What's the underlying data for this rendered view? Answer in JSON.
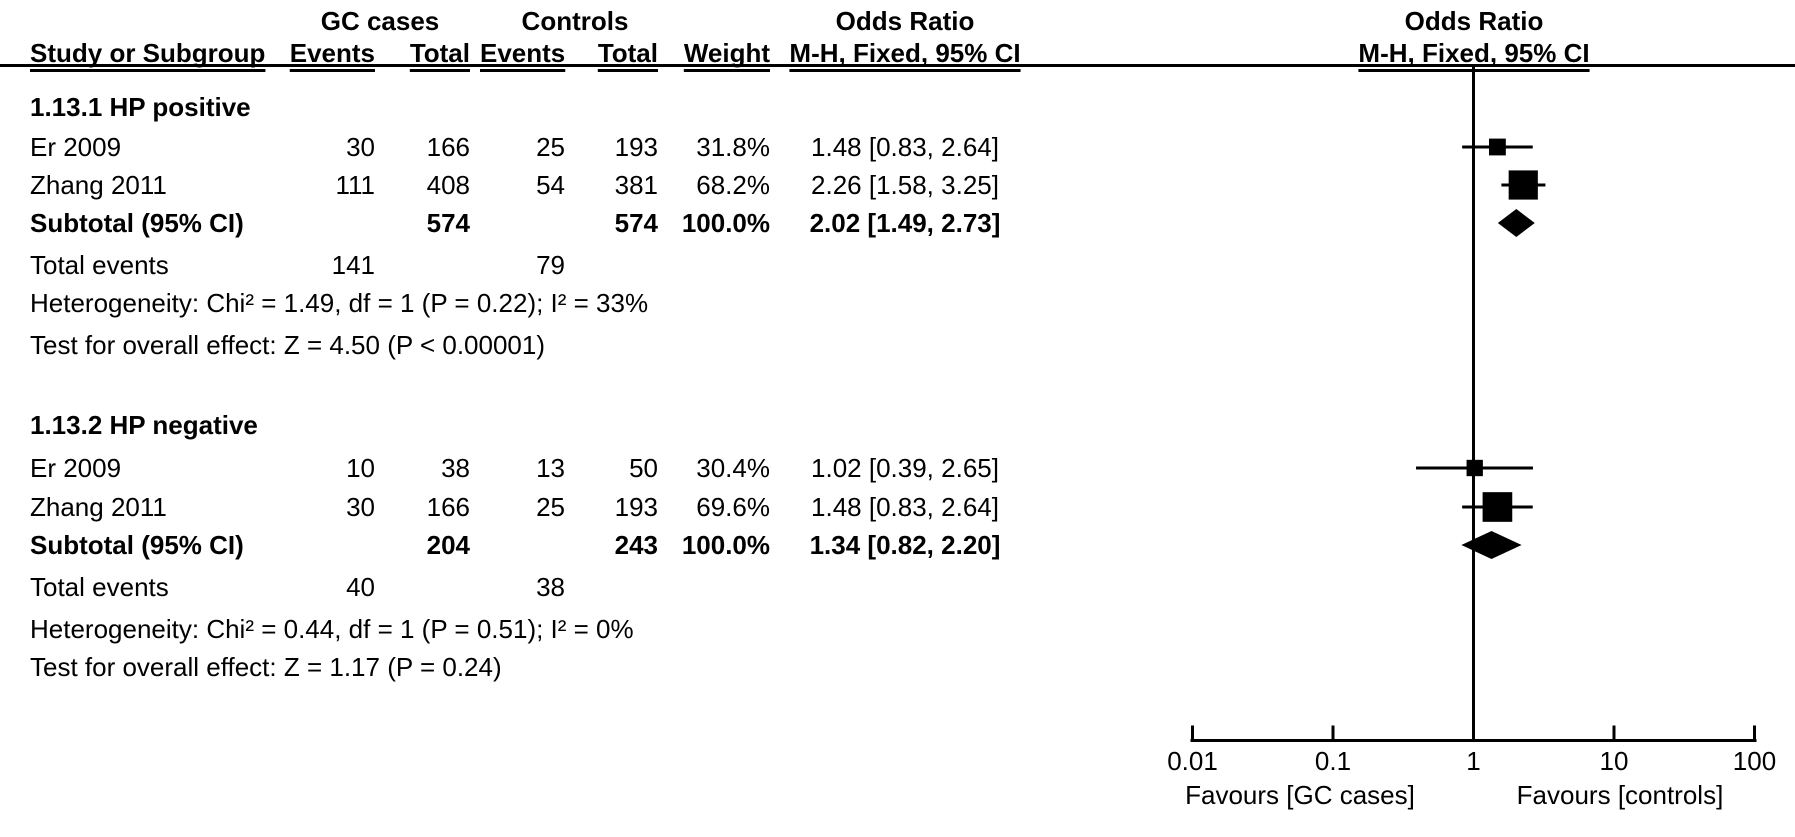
{
  "header": {
    "study_col": "Study or Subgroup",
    "group1": "GC cases",
    "group2": "Controls",
    "events": "Events",
    "total": "Total",
    "weight": "Weight",
    "or_title": "Odds Ratio",
    "method": "M-H, Fixed, 95% CI"
  },
  "sections": [
    {
      "title": "1.13.1 HP positive",
      "studies": [
        {
          "name": "Er 2009",
          "e1": "30",
          "t1": "166",
          "e2": "25",
          "t2": "193",
          "weight": "31.8%",
          "ci": "1.48 [0.83, 2.64]"
        },
        {
          "name": "Zhang 2011",
          "e1": "111",
          "t1": "408",
          "e2": "54",
          "t2": "381",
          "weight": "68.2%",
          "ci": "2.26 [1.58, 3.25]"
        }
      ],
      "subtotal": {
        "label": "Subtotal (95% CI)",
        "t1": "574",
        "t2": "574",
        "weight": "100.0%",
        "ci": "2.02 [1.49, 2.73]"
      },
      "total_events": {
        "label": "Total events",
        "e1": "141",
        "e2": "79"
      },
      "heterogeneity": "Heterogeneity: Chi² = 1.49, df = 1 (P = 0.22); I² = 33%",
      "overall_effect": "Test for overall effect: Z = 4.50 (P < 0.00001)"
    },
    {
      "title": "1.13.2 HP negative",
      "studies": [
        {
          "name": "Er 2009",
          "e1": "10",
          "t1": "38",
          "e2": "13",
          "t2": "50",
          "weight": "30.4%",
          "ci": "1.02 [0.39, 2.65]"
        },
        {
          "name": "Zhang 2011",
          "e1": "30",
          "t1": "166",
          "e2": "25",
          "t2": "193",
          "weight": "69.6%",
          "ci": "1.48 [0.83, 2.64]"
        }
      ],
      "subtotal": {
        "label": "Subtotal (95% CI)",
        "t1": "204",
        "t2": "243",
        "weight": "100.0%",
        "ci": "1.34 [0.82, 2.20]"
      },
      "total_events": {
        "label": "Total events",
        "e1": "40",
        "e2": "38"
      },
      "heterogeneity": "Heterogeneity: Chi² = 0.44, df = 1 (P = 0.51); I² = 0%",
      "overall_effect": "Test for overall effect: Z = 1.17 (P = 0.24)"
    }
  ],
  "axis": {
    "tick_labels": [
      "0.01",
      "0.1",
      "1",
      "10",
      "100"
    ],
    "tick_values": [
      0.01,
      0.1,
      1,
      10,
      100
    ],
    "favours_left": "Favours [GC cases]",
    "favours_right": "Favours [controls]"
  },
  "chart_data": {
    "type": "scatter",
    "subtype": "forest-plot",
    "title": "Odds Ratio  M-H, Fixed, 95% CI",
    "x_scale": "log10",
    "x_ticks": [
      0.01,
      0.1,
      1,
      10,
      100
    ],
    "xlim": [
      0.01,
      100
    ],
    "null_line": 1.0,
    "xlabel_left": "Favours [GC cases]",
    "xlabel_right": "Favours [controls]",
    "series": [
      {
        "name": "1.13.1 HP positive",
        "points": [
          {
            "label": "Er 2009",
            "or": 1.48,
            "lo": 0.83,
            "hi": 2.64,
            "weight_pct": 31.8,
            "marker": "square"
          },
          {
            "label": "Zhang 2011",
            "or": 2.26,
            "lo": 1.58,
            "hi": 3.25,
            "weight_pct": 68.2,
            "marker": "square"
          },
          {
            "label": "Subtotal (95% CI)",
            "or": 2.02,
            "lo": 1.49,
            "hi": 2.73,
            "weight_pct": 100.0,
            "marker": "diamond"
          }
        ]
      },
      {
        "name": "1.13.2 HP negative",
        "points": [
          {
            "label": "Er 2009",
            "or": 1.02,
            "lo": 0.39,
            "hi": 2.65,
            "weight_pct": 30.4,
            "marker": "square"
          },
          {
            "label": "Zhang 2011",
            "or": 1.48,
            "lo": 0.83,
            "hi": 2.64,
            "weight_pct": 69.6,
            "marker": "square"
          },
          {
            "label": "Subtotal (95% CI)",
            "or": 1.34,
            "lo": 0.82,
            "hi": 2.2,
            "weight_pct": 100.0,
            "marker": "diamond"
          }
        ]
      }
    ]
  }
}
